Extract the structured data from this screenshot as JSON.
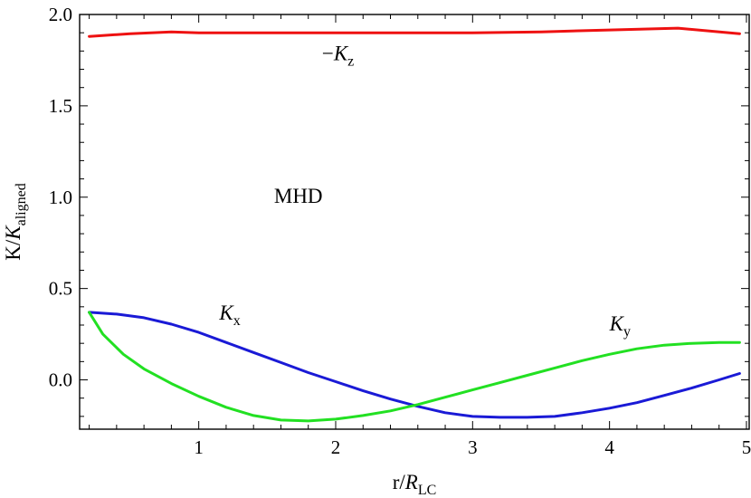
{
  "chart_data": {
    "type": "line",
    "xlabel": {
      "main": "r/",
      "sym": "R",
      "sub": "LC"
    },
    "ylabel": {
      "main": "K/",
      "sym": "K",
      "sub": "aligned"
    },
    "xlim": [
      0.13,
      5.02
    ],
    "ylim": [
      -0.27,
      2.0
    ],
    "xticks": [
      1,
      2,
      3,
      4,
      5
    ],
    "xtick_labels": [
      "1",
      "2",
      "3",
      "4",
      "5"
    ],
    "yticks": [
      0.0,
      0.5,
      1.0,
      1.5,
      2.0
    ],
    "ytick_labels": [
      "0.0",
      "0.5",
      "1.0",
      "1.5",
      "2.0"
    ],
    "grid": false,
    "series": [
      {
        "name": "-Kz",
        "color": "#ee1111",
        "x": [
          0.2,
          0.5,
          0.8,
          1.0,
          1.5,
          2.0,
          2.5,
          3.0,
          3.5,
          4.0,
          4.5,
          4.95
        ],
        "y": [
          1.88,
          1.895,
          1.905,
          1.9,
          1.9,
          1.9,
          1.9,
          1.9,
          1.905,
          1.915,
          1.925,
          1.895
        ]
      },
      {
        "name": "Kx",
        "color": "#1a1ad6",
        "x": [
          0.2,
          0.4,
          0.6,
          0.8,
          1.0,
          1.2,
          1.4,
          1.6,
          1.8,
          2.0,
          2.2,
          2.4,
          2.6,
          2.8,
          3.0,
          3.2,
          3.4,
          3.6,
          3.8,
          4.0,
          4.2,
          4.4,
          4.6,
          4.8,
          4.95
        ],
        "y": [
          0.37,
          0.36,
          0.34,
          0.305,
          0.26,
          0.205,
          0.15,
          0.095,
          0.04,
          -0.01,
          -0.06,
          -0.105,
          -0.145,
          -0.18,
          -0.2,
          -0.205,
          -0.205,
          -0.2,
          -0.18,
          -0.155,
          -0.125,
          -0.085,
          -0.045,
          0.0,
          0.035
        ]
      },
      {
        "name": "Ky",
        "color": "#22e022",
        "x": [
          0.2,
          0.3,
          0.45,
          0.6,
          0.8,
          1.0,
          1.2,
          1.4,
          1.6,
          1.8,
          2.0,
          2.2,
          2.4,
          2.6,
          2.8,
          3.0,
          3.2,
          3.4,
          3.6,
          3.8,
          4.0,
          4.2,
          4.4,
          4.6,
          4.8,
          4.95
        ],
        "y": [
          0.37,
          0.25,
          0.14,
          0.06,
          -0.02,
          -0.09,
          -0.15,
          -0.195,
          -0.22,
          -0.225,
          -0.215,
          -0.195,
          -0.17,
          -0.135,
          -0.095,
          -0.055,
          -0.015,
          0.025,
          0.065,
          0.105,
          0.14,
          0.17,
          0.19,
          0.2,
          0.205,
          0.205
        ]
      }
    ],
    "annotations": [
      {
        "text": "MHD",
        "x": 1.55,
        "y": 0.97
      },
      {
        "text": "−",
        "sym": "K",
        "sub": "z",
        "x": 1.9,
        "y": 1.75
      },
      {
        "text": "",
        "sym": "K",
        "sub": "x",
        "x": 1.15,
        "y": 0.33
      },
      {
        "text": "",
        "sym": "K",
        "sub": "y",
        "x": 4.0,
        "y": 0.27
      }
    ]
  }
}
